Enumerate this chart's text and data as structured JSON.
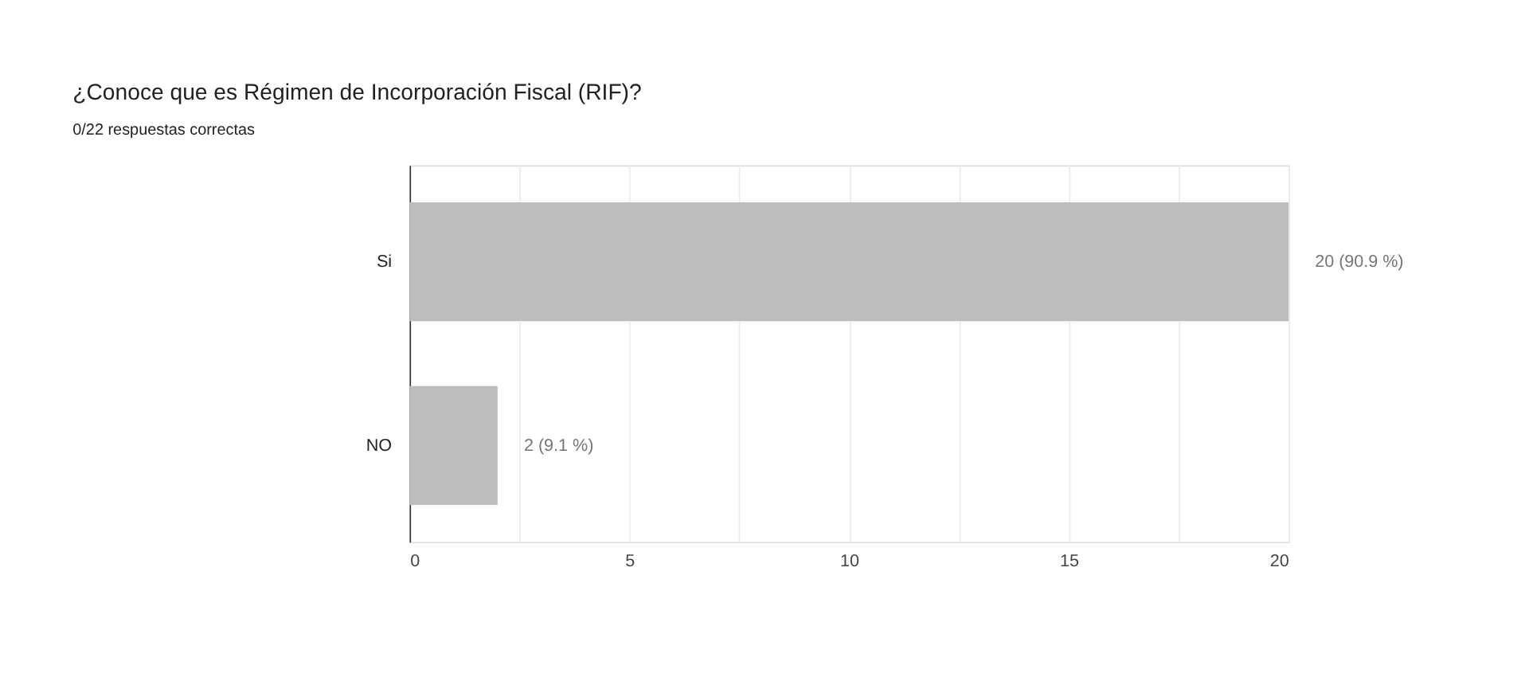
{
  "chart_data": {
    "type": "bar",
    "orientation": "horizontal",
    "title": "¿Conoce que es Régimen de Incorporación Fiscal (RIF)?",
    "subtitle": "0/22 respuestas correctas",
    "categories": [
      "Si",
      "NO"
    ],
    "values": [
      20,
      2
    ],
    "color": "#bdbdbd",
    "value_labels": [
      "20 (90.9 %)",
      "2 (9.1 %)"
    ],
    "xlim": [
      0,
      20
    ],
    "xticks": [
      0,
      {
        "value": 2.5,
        "label": null
      },
      5,
      {
        "value": 7.5,
        "label": null
      },
      10,
      {
        "value": 12.5,
        "label": null
      },
      15,
      {
        "value": 17.5,
        "label": null
      },
      20
    ],
    "grid": "x"
  }
}
